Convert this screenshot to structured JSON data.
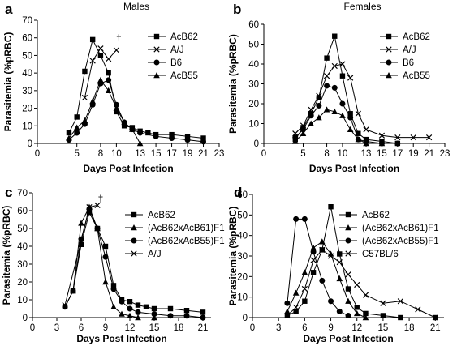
{
  "chart_data": [
    {
      "panel": "a",
      "title": "Males",
      "type": "line",
      "xlabel": "Days Post Infection",
      "ylabel": "Parasitemia (%pRBC)",
      "xlim": [
        0,
        23
      ],
      "ylim": [
        0,
        70
      ],
      "xticks": [
        0,
        5,
        8,
        10,
        13,
        15,
        17,
        19,
        21,
        23
      ],
      "yticks": [
        0,
        10,
        20,
        30,
        40,
        50,
        60,
        70
      ],
      "legend_position": "top-right",
      "annotations": [
        {
          "text": "†",
          "x": 10.3,
          "y": 58
        }
      ],
      "series": [
        {
          "name": "AcB62",
          "marker": "square",
          "x": [
            4,
            5,
            6,
            7,
            8,
            9,
            10,
            11,
            12,
            13,
            14,
            15,
            17,
            19,
            21
          ],
          "y": [
            6,
            15,
            41,
            59,
            50,
            40,
            18,
            10,
            9,
            7,
            6,
            5,
            5,
            4,
            3
          ]
        },
        {
          "name": "A/J",
          "marker": "cross",
          "x": [
            6,
            7,
            8,
            9,
            10
          ],
          "y": [
            26,
            47,
            54,
            48,
            53
          ]
        },
        {
          "name": "B6",
          "marker": "circle",
          "x": [
            4,
            5,
            6,
            7,
            8,
            9,
            10,
            11,
            12,
            13,
            15,
            17,
            19,
            21
          ],
          "y": [
            2,
            6,
            11,
            22,
            34,
            36,
            22,
            12,
            8,
            6,
            4,
            3,
            2,
            1
          ]
        },
        {
          "name": "AcB55",
          "marker": "triangle",
          "x": [
            4,
            5,
            6,
            7,
            8,
            9,
            10,
            11,
            12,
            13
          ],
          "y": [
            3,
            9,
            13,
            24,
            36,
            30,
            20,
            12,
            8,
            0
          ]
        }
      ]
    },
    {
      "panel": "b",
      "title": "Females",
      "type": "line",
      "xlabel": "Days Post Infection",
      "ylabel": "Parasitemia (%pRBC)",
      "xlim": [
        0,
        23
      ],
      "ylim": [
        0,
        60
      ],
      "xticks": [
        0,
        5,
        8,
        10,
        13,
        15,
        17,
        19,
        21,
        23
      ],
      "yticks": [
        0,
        10,
        20,
        30,
        40,
        50,
        60
      ],
      "legend_position": "top-right",
      "annotations": [],
      "series": [
        {
          "name": "AcB62",
          "marker": "square",
          "x": [
            4,
            5,
            6,
            7,
            8,
            9,
            10,
            11,
            12,
            13,
            15,
            17
          ],
          "y": [
            2,
            8,
            15,
            23,
            43,
            54,
            34,
            15,
            5,
            2,
            1,
            0
          ]
        },
        {
          "name": "A/J",
          "marker": "cross",
          "x": [
            4,
            5,
            6,
            7,
            8,
            9,
            10,
            11,
            12,
            13,
            15,
            17,
            19,
            21
          ],
          "y": [
            5,
            9,
            17,
            24,
            34,
            39,
            40,
            33,
            15,
            7,
            4,
            3,
            3,
            3
          ]
        },
        {
          "name": "B6",
          "marker": "circle",
          "x": [
            4,
            5,
            6,
            7,
            8,
            9,
            10,
            11,
            12,
            13,
            15,
            17
          ],
          "y": [
            3,
            7,
            14,
            19,
            29,
            28,
            20,
            13,
            2,
            1,
            0,
            0
          ]
        },
        {
          "name": "AcB55",
          "marker": "triangle",
          "x": [
            4,
            5,
            6,
            7,
            8,
            9,
            10,
            11,
            12,
            13,
            15
          ],
          "y": [
            1,
            5,
            10,
            13,
            17,
            16,
            14,
            7,
            2,
            0,
            0
          ]
        }
      ]
    },
    {
      "panel": "c",
      "type": "line",
      "xlabel": "Days Post Infection",
      "ylabel": "Parasitemia (%pRBC)",
      "xlim": [
        0,
        22
      ],
      "ylim": [
        0,
        70
      ],
      "xticks": [
        0,
        3,
        6,
        9,
        12,
        15,
        18,
        21
      ],
      "yticks": [
        0,
        10,
        20,
        30,
        40,
        50,
        60,
        70
      ],
      "legend_position": "top-right",
      "annotations": [
        {
          "text": "†",
          "x": 8.4,
          "y": 65
        }
      ],
      "series": [
        {
          "name": "AcB62",
          "marker": "square",
          "x": [
            4,
            5,
            6,
            7,
            8,
            9,
            10,
            11,
            12,
            13,
            14,
            15,
            17,
            19,
            21
          ],
          "y": [
            6,
            15,
            41,
            59,
            50,
            40,
            18,
            10,
            9,
            7,
            6,
            5,
            5,
            4,
            3
          ]
        },
        {
          "name": "(AcB62xAcB61)F1",
          "marker": "triangle",
          "x": [
            4,
            5,
            6,
            7,
            8,
            9,
            10,
            11,
            12,
            13,
            15
          ],
          "y": [
            6,
            15,
            53,
            62,
            50,
            20,
            6,
            2,
            1,
            0,
            0
          ]
        },
        {
          "name": "(AcB62xAcB55)F1",
          "marker": "circle",
          "x": [
            4,
            5,
            6,
            7,
            8,
            9,
            10,
            11,
            12,
            13,
            15,
            17,
            19,
            21
          ],
          "y": [
            6,
            15,
            44,
            61,
            50,
            34,
            16,
            9,
            5,
            3,
            2,
            1,
            1,
            0
          ]
        },
        {
          "name": "A/J",
          "marker": "cross",
          "x": [
            4,
            6,
            7,
            8
          ],
          "y": [
            7,
            43,
            62,
            63
          ]
        }
      ]
    },
    {
      "panel": "d",
      "type": "line",
      "xlabel": "Days Post Infection",
      "ylabel": "Parasitemia (%pRBC)",
      "xlim": [
        0,
        22
      ],
      "ylim": [
        0,
        60
      ],
      "xticks": [
        0,
        3,
        6,
        9,
        12,
        15,
        18,
        21
      ],
      "yticks": [
        0,
        10,
        20,
        30,
        40,
        50,
        60
      ],
      "legend_position": "top-right",
      "annotations": [],
      "series": [
        {
          "name": "AcB62",
          "marker": "square",
          "x": [
            4,
            5,
            6,
            7,
            8,
            9,
            10,
            11,
            12,
            13,
            15,
            17,
            21
          ],
          "y": [
            1,
            3,
            8,
            22,
            33,
            54,
            31,
            14,
            5,
            2,
            1,
            0,
            0
          ]
        },
        {
          "name": "(AcB62xAcB61)F1",
          "marker": "triangle",
          "x": [
            4,
            5,
            6,
            7,
            8,
            9,
            10,
            11,
            12,
            13
          ],
          "y": [
            3,
            12,
            22,
            34,
            37,
            31,
            19,
            8,
            2,
            0
          ]
        },
        {
          "name": "(AcB62xAcB55)F1",
          "marker": "circle",
          "x": [
            4,
            5,
            6,
            7,
            8,
            9,
            10,
            11
          ],
          "y": [
            7,
            48,
            48,
            32,
            18,
            8,
            3,
            1
          ]
        },
        {
          "name": "C57BL/6",
          "marker": "cross",
          "x": [
            4,
            5,
            6,
            7,
            8,
            9,
            10,
            11,
            12,
            13,
            15,
            17,
            19,
            21
          ],
          "y": [
            1,
            5,
            14,
            28,
            33,
            30,
            27,
            21,
            16,
            11,
            7,
            8,
            4,
            0
          ]
        }
      ]
    }
  ]
}
